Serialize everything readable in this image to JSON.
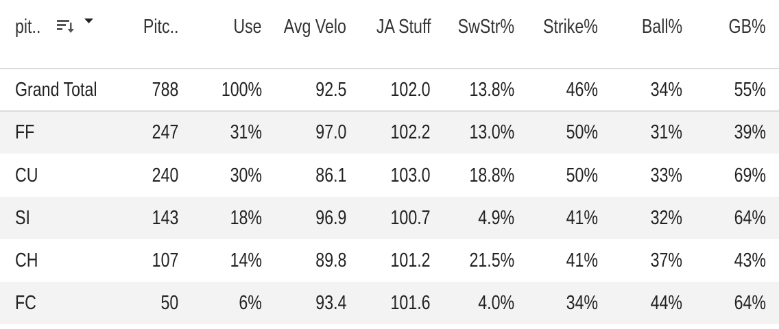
{
  "table": {
    "columns": [
      "pit..",
      "Pitc..",
      "Use",
      "Avg Velo",
      "JA Stuff",
      "SwStr%",
      "Strike%",
      "Ball%",
      "GB%"
    ],
    "rows": [
      [
        "Grand Total",
        "788",
        "100%",
        "92.5",
        "102.0",
        "13.8%",
        "46%",
        "34%",
        "55%"
      ],
      [
        "FF",
        "247",
        "31%",
        "97.0",
        "102.2",
        "13.0%",
        "50%",
        "31%",
        "39%"
      ],
      [
        "CU",
        "240",
        "30%",
        "86.1",
        "103.0",
        "18.8%",
        "50%",
        "33%",
        "69%"
      ],
      [
        "SI",
        "143",
        "18%",
        "96.9",
        "100.7",
        "4.9%",
        "41%",
        "32%",
        "64%"
      ],
      [
        "CH",
        "107",
        "14%",
        "89.8",
        "101.2",
        "21.5%",
        "41%",
        "37%",
        "43%"
      ],
      [
        "FC",
        "50",
        "6%",
        "93.4",
        "101.6",
        "4.0%",
        "34%",
        "44%",
        "64%"
      ]
    ]
  }
}
